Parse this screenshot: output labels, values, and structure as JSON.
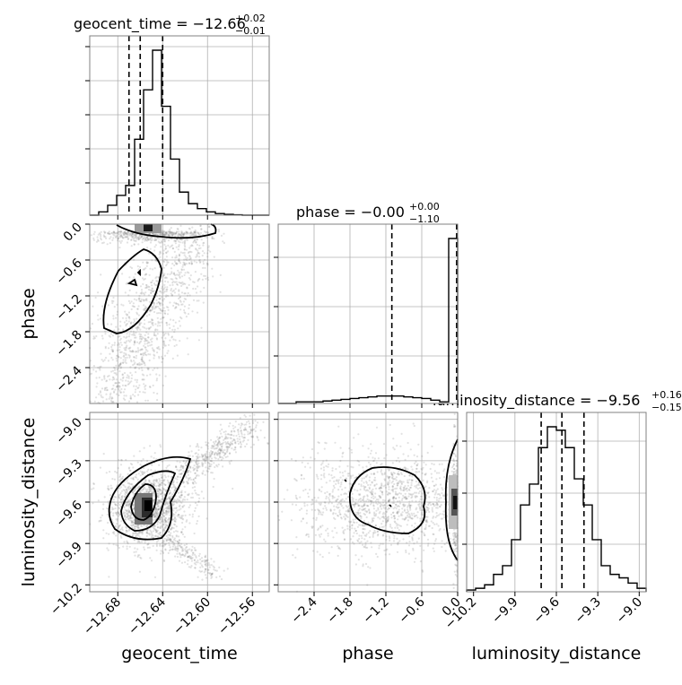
{
  "figure": {
    "background": "#ffffff",
    "grid": true,
    "hist_color": "#000000",
    "scatter_color": "#7a7a7a",
    "contour_color": "#000000"
  },
  "chart_data": [
    {
      "type": "histogram",
      "panel": "geocent_time",
      "title_main": "geocent_time = −12.66",
      "title_sup": "+0.02",
      "title_sub": "−0.01",
      "xlim": [
        -12.705,
        -12.545
      ],
      "x_ticks": [
        -12.68,
        -12.64,
        -12.6,
        -12.56
      ],
      "x_tick_labels": [
        "−12.68",
        "−12.64",
        "−12.60",
        "−12.56"
      ],
      "quantiles": [
        -12.67,
        -12.66,
        -12.64
      ],
      "bin_edges": [
        -12.705,
        -12.697,
        -12.689,
        -12.681,
        -12.673,
        -12.665,
        -12.657,
        -12.649,
        -12.641,
        -12.633,
        -12.625,
        -12.617,
        -12.609,
        -12.601,
        -12.593,
        -12.585,
        -12.577,
        -12.569,
        -12.561,
        -12.553,
        -12.545
      ],
      "counts": [
        0,
        0.02,
        0.06,
        0.12,
        0.18,
        0.46,
        0.76,
        1.0,
        0.66,
        0.34,
        0.14,
        0.07,
        0.04,
        0.02,
        0.01,
        0.005,
        0.002,
        0,
        0,
        0
      ]
    },
    {
      "type": "histogram",
      "panel": "phase",
      "title_main": "phase = −0.00",
      "title_sup": "+0.00",
      "title_sub": "−1.10",
      "xlim": [
        -3.0,
        0.0
      ],
      "quantiles": [
        -1.1,
        -0.0,
        0.0
      ],
      "bin_edges": [
        -3.0,
        -2.85,
        -2.7,
        -2.55,
        -2.4,
        -2.25,
        -2.1,
        -1.95,
        -1.8,
        -1.65,
        -1.5,
        -1.35,
        -1.2,
        -1.05,
        -0.9,
        -0.75,
        -0.6,
        -0.45,
        -0.3,
        -0.15,
        0.0
      ],
      "counts": [
        0,
        0,
        0.01,
        0.01,
        0.01,
        0.015,
        0.02,
        0.025,
        0.03,
        0.035,
        0.04,
        0.045,
        0.045,
        0.045,
        0.04,
        0.035,
        0.03,
        0.02,
        0.01,
        1.0
      ]
    },
    {
      "type": "histogram",
      "panel": "luminosity_distance",
      "title_main": "luminosity_distance = −9.56",
      "title_sup": "+0.16",
      "title_sub": "−0.15",
      "xlim": [
        -10.25,
        -8.95
      ],
      "x_ticks": [
        -10.2,
        -9.9,
        -9.6,
        -9.3,
        -9.0
      ],
      "x_tick_labels": [
        "−10.2",
        "−9.9",
        "−9.6",
        "−9.3",
        "−9.0"
      ],
      "quantiles": [
        -9.71,
        -9.56,
        -9.4
      ],
      "bin_edges": [
        -10.25,
        -10.185,
        -10.12,
        -10.055,
        -9.99,
        -9.925,
        -9.86,
        -9.795,
        -9.73,
        -9.665,
        -9.6,
        -9.535,
        -9.47,
        -9.405,
        -9.34,
        -9.275,
        -9.21,
        -9.145,
        -9.08,
        -9.015,
        -8.95
      ],
      "counts": [
        0.01,
        0.02,
        0.04,
        0.1,
        0.15,
        0.3,
        0.5,
        0.62,
        0.83,
        0.95,
        0.93,
        0.83,
        0.65,
        0.5,
        0.3,
        0.15,
        0.1,
        0.08,
        0.05,
        0.02
      ]
    },
    {
      "type": "scatter",
      "panel": "phase vs geocent_time",
      "xlabel": "",
      "ylabel": "phase",
      "xlim": [
        -12.705,
        -12.545
      ],
      "ylim": [
        -3.0,
        0.0
      ],
      "y_ticks": [
        0.0,
        -0.6,
        -1.2,
        -1.8,
        -2.4
      ],
      "y_tick_labels": [
        "0.0",
        "−0.6",
        "−1.2",
        "−1.8",
        "−2.4"
      ]
    },
    {
      "type": "scatter",
      "panel": "luminosity_distance vs geocent_time",
      "xlabel": "geocent_time",
      "ylabel": "luminosity_distance",
      "xlim": [
        -12.705,
        -12.545
      ],
      "ylim": [
        -10.25,
        -8.95
      ],
      "y_ticks": [
        -9.0,
        -9.3,
        -9.6,
        -9.9,
        -10.2
      ],
      "y_tick_labels": [
        "−9.0",
        "−9.3",
        "−9.6",
        "−9.9",
        "−10.2"
      ]
    },
    {
      "type": "scatter",
      "panel": "luminosity_distance vs phase",
      "xlabel": "phase",
      "xlim": [
        -3.0,
        0.0
      ],
      "ylim": [
        -10.25,
        -8.95
      ],
      "x_ticks": [
        -2.4,
        -1.8,
        -1.2,
        -0.6,
        0.0
      ],
      "x_tick_labels": [
        "−2.4",
        "−1.8",
        "−1.2",
        "−0.6",
        "0.0"
      ]
    }
  ]
}
